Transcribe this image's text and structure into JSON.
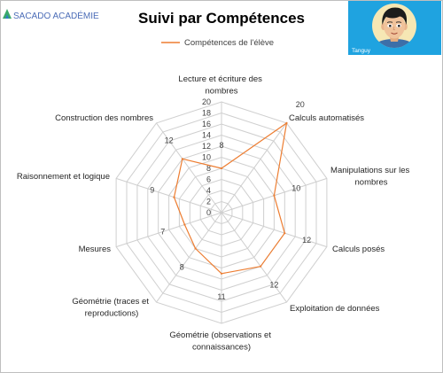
{
  "logo": {
    "icon": "sacado-logo-icon",
    "text": "SACADO ACADÉMIE"
  },
  "student": {
    "avatar_icon": "student-avatar-icon",
    "name": "Tanguy"
  },
  "colors": {
    "brand_text": "#4b6cb7",
    "avatar_background": "#1fa3e0"
  },
  "chart_data": {
    "type": "radar",
    "title": "Suivi par Compétences",
    "categories": [
      "Lecture et écriture des nombres",
      "Calculs automatisés",
      "Manipulations sur les nombres",
      "Calculs posés",
      "Exploitation de données",
      "Géométrie (observations et connaissances)",
      "Géométrie (traces et reproductions)",
      "Mesures",
      "Raisonnement et logique",
      "Construction des nombres"
    ],
    "series": [
      {
        "name": "Compétences de l'élève",
        "values": [
          8,
          20,
          10,
          12,
          12,
          11,
          8,
          7,
          9,
          12
        ],
        "color": "#ed7d31"
      }
    ],
    "rlim": [
      0,
      20
    ],
    "ticks": [
      0,
      2,
      4,
      6,
      8,
      10,
      12,
      14,
      16,
      18,
      20
    ],
    "grid": true,
    "legend": "top",
    "data_labels": true
  }
}
